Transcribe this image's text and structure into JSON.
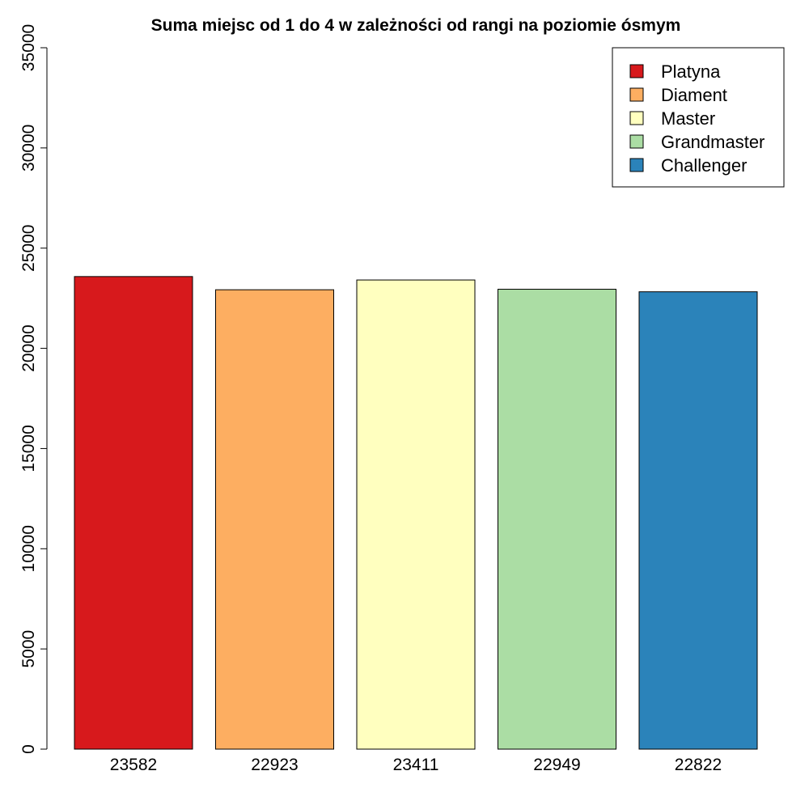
{
  "chart_data": {
    "type": "bar",
    "title": "Suma miejsc od 1 do 4 w zależności od rangi na poziomie ósmym",
    "xlabel": "",
    "ylabel": "",
    "categories": [
      "23582",
      "22923",
      "23411",
      "22949",
      "22822"
    ],
    "values": [
      23582,
      22923,
      23411,
      22949,
      22822
    ],
    "colors": [
      "#d7191c",
      "#fdae61",
      "#ffffbf",
      "#abdda4",
      "#2b83ba"
    ],
    "ylim": [
      0,
      35000
    ],
    "yticks": [
      0,
      5000,
      10000,
      15000,
      20000,
      25000,
      30000,
      35000
    ],
    "grid": false,
    "legend": {
      "position": "top-right",
      "entries": [
        "Platyna",
        "Diament",
        "Master",
        "Grandmaster",
        "Challenger"
      ]
    }
  }
}
